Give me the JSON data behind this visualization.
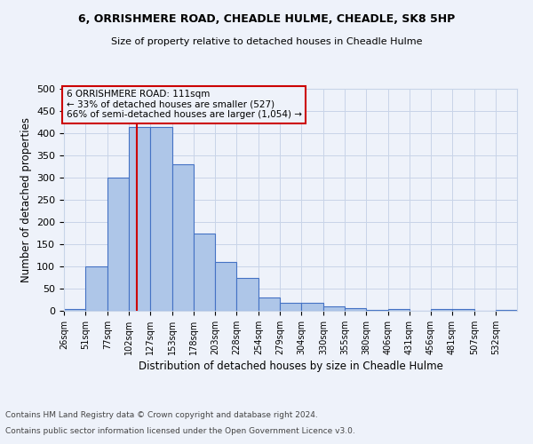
{
  "title1": "6, ORRISHMERE ROAD, CHEADLE HULME, CHEADLE, SK8 5HP",
  "title2": "Size of property relative to detached houses in Cheadle Hulme",
  "xlabel": "Distribution of detached houses by size in Cheadle Hulme",
  "ylabel": "Number of detached properties",
  "bar_values": [
    5,
    100,
    300,
    415,
    415,
    330,
    175,
    110,
    75,
    30,
    18,
    18,
    10,
    7,
    3,
    5,
    0,
    5,
    5,
    0,
    3
  ],
  "bin_edges": [
    26,
    51,
    77,
    102,
    127,
    153,
    178,
    203,
    228,
    254,
    279,
    304,
    330,
    355,
    380,
    406,
    431,
    456,
    481,
    507,
    532,
    557
  ],
  "xlabels": [
    "26sqm",
    "51sqm",
    "77sqm",
    "102sqm",
    "127sqm",
    "153sqm",
    "178sqm",
    "203sqm",
    "228sqm",
    "254sqm",
    "279sqm",
    "304sqm",
    "330sqm",
    "355sqm",
    "380sqm",
    "406sqm",
    "431sqm",
    "456sqm",
    "481sqm",
    "507sqm",
    "532sqm"
  ],
  "bar_color": "#aec6e8",
  "bar_edge_color": "#4472c4",
  "grid_color": "#c8d4e8",
  "property_size": 111,
  "red_line_color": "#cc0000",
  "annotation_text": "6 ORRISHMERE ROAD: 111sqm\n← 33% of detached houses are smaller (527)\n66% of semi-detached houses are larger (1,054) →",
  "annotation_box_color": "#cc0000",
  "ylim": [
    0,
    500
  ],
  "yticks": [
    0,
    50,
    100,
    150,
    200,
    250,
    300,
    350,
    400,
    450,
    500
  ],
  "footnote1": "Contains HM Land Registry data © Crown copyright and database right 2024.",
  "footnote2": "Contains public sector information licensed under the Open Government Licence v3.0.",
  "bg_color": "#eef2fa"
}
